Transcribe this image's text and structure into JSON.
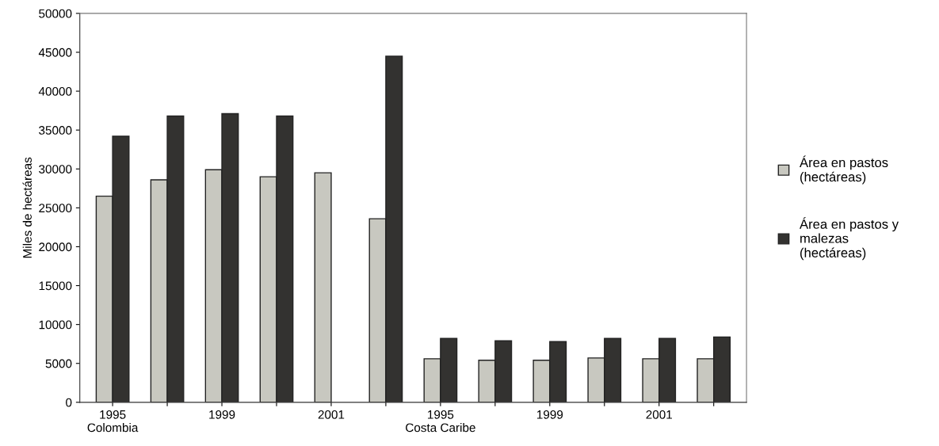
{
  "chart_data": {
    "type": "bar",
    "ylabel": "Miles de hectáreas",
    "categories": [
      "1995\nColombia",
      null,
      "1999",
      null,
      "2001",
      null,
      "1995\nCosta Caribe",
      null,
      "1999",
      null,
      "2001",
      null
    ],
    "series": [
      {
        "name": "Área en pastos (hectáreas)",
        "color": "#c8c8c0",
        "values": [
          26500,
          28600,
          29900,
          29000,
          29500,
          23600,
          5600,
          5400,
          5400,
          5700,
          5600,
          5600
        ]
      },
      {
        "name": "Área en pastos y malezas (hectáreas)",
        "color": "#333230",
        "values": [
          34200,
          36800,
          37100,
          36800,
          null,
          44500,
          8200,
          7900,
          7800,
          8200,
          8200,
          8400
        ]
      }
    ],
    "ylim": [
      0,
      50000
    ],
    "yticks": [
      0,
      5000,
      10000,
      15000,
      20000,
      25000,
      30000,
      35000,
      40000,
      45000,
      50000
    ],
    "grid": false,
    "legend": "right"
  }
}
